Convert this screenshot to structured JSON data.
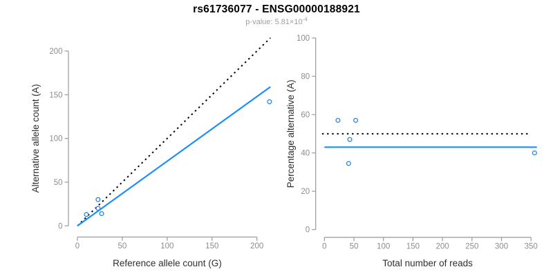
{
  "header": {
    "title": "rs61736077 - ENSG00000188921",
    "pvalue_label": "p-value: 5.81×10",
    "pvalue_exponent": "-4"
  },
  "colors": {
    "title": "#000000",
    "subtitle": "#9e9e9e",
    "axis_line": "#999999",
    "tick_label": "#8c8c8c",
    "axis_title": "#2e2e2e",
    "regression_blue": "#1e8ff7",
    "point_blue": "#2e86de",
    "dotted_black": "#000000",
    "background": "#ffffff"
  },
  "chart_data": [
    {
      "type": "scatter",
      "panel": "left",
      "xlabel": "Reference allele count (G)",
      "ylabel": "Alternative allele count (A)",
      "xlim": [
        0,
        215
      ],
      "ylim": [
        0,
        215
      ],
      "xticks": [
        0,
        50,
        100,
        150,
        200
      ],
      "yticks": [
        0,
        50,
        100,
        150,
        200
      ],
      "grid": false,
      "points": [
        [
          10,
          13
        ],
        [
          23,
          30
        ],
        [
          23,
          20
        ],
        [
          27,
          14
        ],
        [
          214,
          142
        ]
      ],
      "lines": [
        {
          "name": "identity-line",
          "style": "dotted",
          "color": "#000000",
          "x1": 0,
          "y1": 0,
          "x2": 215,
          "y2": 215
        },
        {
          "name": "regression-line",
          "style": "solid",
          "color": "#1e8ff7",
          "x1": 0,
          "y1": 0,
          "x2": 215,
          "y2": 159
        }
      ]
    },
    {
      "type": "scatter",
      "panel": "right",
      "xlabel": "Total number of reads",
      "ylabel": "Percentage alternative (A)",
      "xlim": [
        0,
        360
      ],
      "ylim": [
        0,
        100
      ],
      "xticks": [
        0,
        50,
        100,
        150,
        200,
        250,
        300,
        350
      ],
      "yticks": [
        0,
        20,
        40,
        60,
        80,
        100
      ],
      "grid": false,
      "points": [
        [
          23,
          57
        ],
        [
          53,
          57
        ],
        [
          43,
          47
        ],
        [
          41,
          34.5
        ],
        [
          356,
          40
        ]
      ],
      "lines": [
        {
          "name": "null-50pct-line",
          "style": "dotted",
          "color": "#000000",
          "x1": -4,
          "y1": 50,
          "x2": 350,
          "y2": 50
        },
        {
          "name": "mean-pct-line",
          "style": "solid",
          "color": "#1e8ff7",
          "x1": 0,
          "y1": 43,
          "x2": 360,
          "y2": 43
        }
      ]
    }
  ]
}
